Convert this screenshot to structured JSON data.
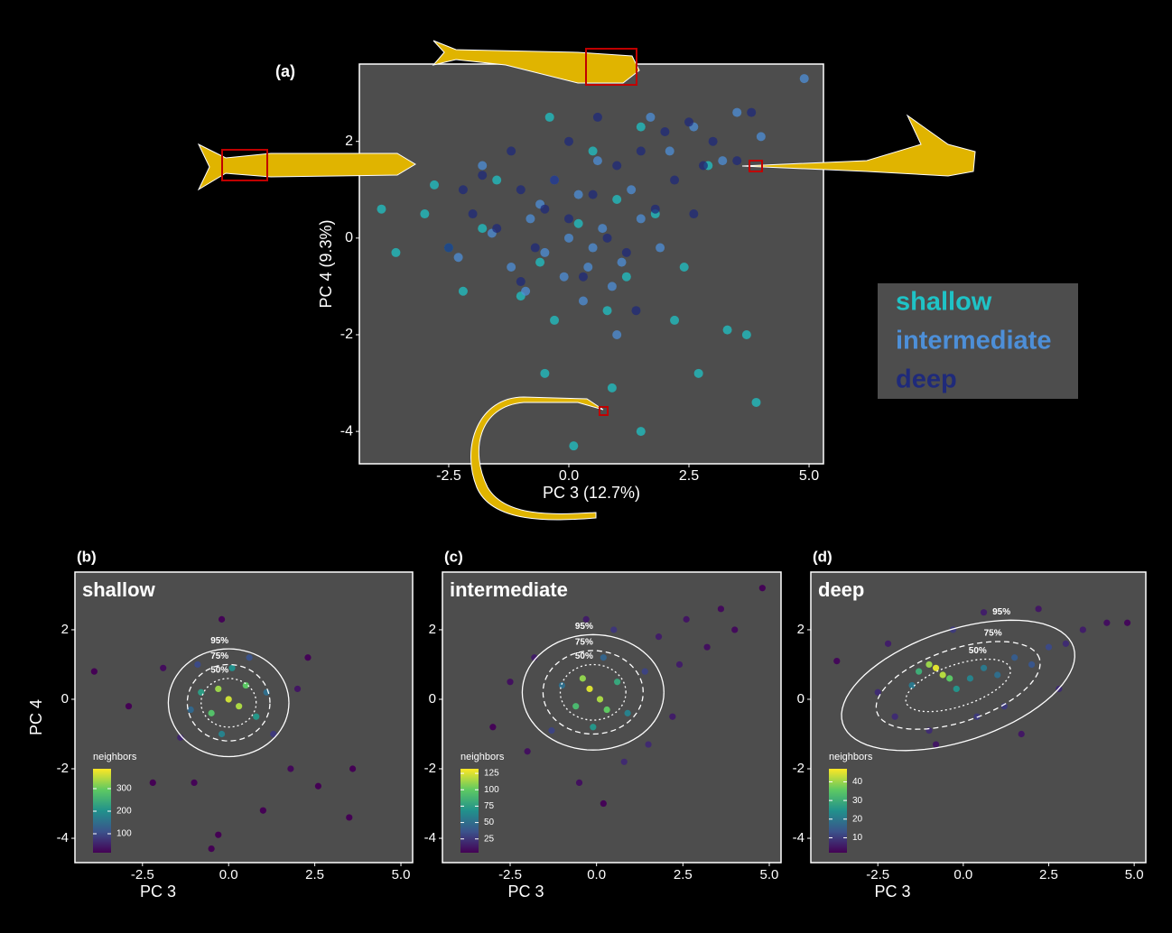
{
  "chart_data": [
    {
      "type": "scatter",
      "panel_label": "(a)",
      "xlabel": "PC 3 (12.7%)",
      "ylabel": "PC 4 (9.3%)",
      "xlim": [
        -4.36,
        5.3
      ],
      "ylim": [
        -4.67,
        3.6
      ],
      "xticks": [
        {
          "value": -2.5,
          "label": "-2.5"
        },
        {
          "value": 0,
          "label": "0.0"
        },
        {
          "value": 2.5,
          "label": "2.5"
        },
        {
          "value": 5,
          "label": "5.0"
        }
      ],
      "yticks": [
        -4,
        -2,
        0,
        2
      ],
      "series": [
        {
          "name": "shallow",
          "color": "#1fc3c6",
          "x": [
            -3.9,
            -3.6,
            3.7,
            3.9,
            0.1,
            1.5,
            2.7,
            -0.5,
            2.2,
            -2.5,
            -2.8,
            -1.8,
            1.2,
            0.5,
            -0.4,
            0.8,
            -1.0,
            1.8,
            2.9,
            -1.5,
            0.2,
            -0.6,
            1.0,
            0.9,
            3.3,
            -0.3,
            2.4,
            -2.2,
            1.5,
            -3.0
          ],
          "values": [
            0.6,
            -0.3,
            -2.0,
            -3.4,
            -4.3,
            -4.0,
            -2.8,
            -2.8,
            -1.7,
            -0.2,
            1.1,
            0.2,
            -0.8,
            1.8,
            2.5,
            -1.5,
            -1.2,
            0.5,
            1.5,
            1.2,
            0.3,
            -0.5,
            0.8,
            -3.1,
            -1.9,
            -1.7,
            -0.6,
            -1.1,
            2.3,
            0.5
          ]
        },
        {
          "name": "intermediate",
          "color": "#4d8fd8",
          "x": [
            0,
            -0.5,
            0.4,
            -0.8,
            0.7,
            1.1,
            -1.2,
            0.2,
            -0.3,
            0.9,
            -1.6,
            1.5,
            0.3,
            -0.9,
            1.3,
            -0.1,
            2.6,
            3.2,
            4.0,
            4.9,
            2.1,
            -1.8,
            0.6,
            1.9,
            -2.3,
            1.0,
            3.5,
            -0.6,
            0.5,
            1.7
          ],
          "values": [
            0,
            -0.3,
            -0.6,
            0.4,
            0.2,
            -0.5,
            -0.6,
            0.9,
            1.2,
            -1.0,
            0.1,
            0.4,
            -1.3,
            -1.1,
            1.0,
            -0.8,
            2.3,
            1.6,
            2.1,
            3.3,
            1.8,
            1.5,
            1.6,
            -0.2,
            -0.4,
            -2.0,
            2.6,
            0.7,
            -0.2,
            2.5
          ]
        },
        {
          "name": "deep",
          "color": "#1f2a7a",
          "x": [
            -1.0,
            -0.5,
            0.0,
            0.5,
            1.0,
            1.5,
            2.0,
            2.5,
            3.0,
            3.5,
            -1.5,
            -2.0,
            -2.5,
            -1.2,
            -0.3,
            0.8,
            1.2,
            0.3,
            -0.7,
            -1.8,
            2.2,
            2.8,
            0.0,
            0.6,
            1.8,
            -1.0,
            1.4,
            2.6,
            -2.2,
            3.8
          ],
          "values": [
            1.0,
            0.6,
            0.4,
            0.9,
            1.5,
            1.8,
            2.2,
            2.4,
            2.0,
            1.6,
            0.2,
            0.5,
            -0.2,
            1.8,
            1.2,
            0.0,
            -0.3,
            -0.8,
            -0.2,
            1.3,
            1.2,
            1.5,
            2.0,
            2.5,
            0.6,
            -0.9,
            -1.5,
            0.5,
            1.0,
            2.6
          ]
        }
      ]
    },
    {
      "type": "density-scatter",
      "panel_label": "(b)",
      "title": "shallow",
      "xlabel": "PC 3",
      "ylabel": "PC 4",
      "xlim": [
        -4.46,
        5.34
      ],
      "ylim": [
        -4.7,
        3.66
      ],
      "xticks": [
        {
          "value": -2.5,
          "label": "-2.5"
        },
        {
          "value": 0,
          "label": "0.0"
        },
        {
          "value": 2.5,
          "label": "2.5"
        },
        {
          "value": 5,
          "label": "5.0"
        }
      ],
      "yticks": [
        -4,
        -2,
        0,
        2
      ],
      "x": [
        0,
        -0.3,
        0.3,
        -0.5,
        0.5,
        -0.8,
        0.8,
        0.1,
        -0.2,
        1.1,
        -1.1,
        0.6,
        -0.9,
        1.3,
        -1.4,
        -0.2,
        -1.9,
        2.3,
        2.6,
        3.6,
        3.5,
        -0.3,
        -0.5,
        -2.9,
        -3.9,
        -2.2,
        1.8,
        1.0,
        -1.0,
        2.0
      ],
      "values": [
        0,
        0.3,
        -0.2,
        -0.4,
        0.4,
        0.2,
        -0.5,
        0.9,
        -1.0,
        0.2,
        -0.3,
        1.2,
        1.0,
        -1.0,
        -1.1,
        2.3,
        0.9,
        1.2,
        -2.5,
        -2.0,
        -3.4,
        -3.9,
        -4.3,
        -0.2,
        0.8,
        -2.4,
        -2.0,
        -3.2,
        -2.4,
        0.3
      ],
      "neighbors": [
        360,
        330,
        340,
        280,
        290,
        220,
        210,
        200,
        180,
        150,
        140,
        110,
        100,
        80,
        60,
        20,
        30,
        20,
        15,
        10,
        10,
        10,
        10,
        10,
        10,
        15,
        25,
        10,
        20,
        40
      ],
      "colorbar": {
        "title": "neighbors",
        "lim": [
          16,
          388
        ],
        "ticks": [
          100,
          200,
          300
        ]
      },
      "ellipses": [
        {
          "label": "95%",
          "cx": 0,
          "cy": -0.1,
          "rx": 1.75,
          "ry": 1.55,
          "angle": 0
        },
        {
          "label": "75%",
          "cx": 0,
          "cy": -0.1,
          "rx": 1.2,
          "ry": 1.1,
          "angle": 0
        },
        {
          "label": "50%",
          "cx": 0,
          "cy": -0.1,
          "rx": 0.8,
          "ry": 0.7,
          "angle": 0
        }
      ]
    },
    {
      "type": "density-scatter",
      "panel_label": "(c)",
      "title": "intermediate",
      "xlabel": "PC 3",
      "xlim": [
        -4.46,
        5.34
      ],
      "ylim": [
        -4.7,
        3.66
      ],
      "xticks": [
        {
          "value": -2.5,
          "label": "-2.5"
        },
        {
          "value": 0,
          "label": "0.0"
        },
        {
          "value": 2.5,
          "label": "2.5"
        },
        {
          "value": 5,
          "label": "5.0"
        }
      ],
      "yticks": [
        -4,
        -2,
        0,
        2
      ],
      "x": [
        -0.2,
        0.1,
        -0.4,
        0.3,
        -0.6,
        0.6,
        -0.1,
        0.9,
        -1.0,
        0.2,
        1.4,
        -1.3,
        1.8,
        2.6,
        3.2,
        4.0,
        4.8,
        3.6,
        2.4,
        -1.8,
        -2.5,
        -0.3,
        0.8,
        -0.5,
        0.2,
        1.5,
        -2.0,
        2.2,
        -3.0,
        0.5
      ],
      "values": [
        0.3,
        0,
        0.6,
        -0.3,
        -0.2,
        0.5,
        -0.8,
        -0.4,
        0.4,
        1.2,
        0.8,
        -0.9,
        1.8,
        2.3,
        1.5,
        2.0,
        3.2,
        2.6,
        1.0,
        1.2,
        0.5,
        2.3,
        -1.8,
        -2.4,
        -3.0,
        -1.3,
        -1.5,
        -0.5,
        -0.8,
        2.0
      ],
      "neighbors": [
        125,
        115,
        110,
        100,
        90,
        80,
        70,
        60,
        50,
        45,
        30,
        30,
        15,
        12,
        10,
        8,
        5,
        8,
        15,
        15,
        10,
        15,
        20,
        10,
        5,
        20,
        10,
        15,
        5,
        25
      ],
      "colorbar": {
        "title": "neighbors",
        "lim": [
          4,
          132
        ],
        "ticks": [
          25,
          50,
          75,
          100,
          125
        ]
      },
      "ellipses": [
        {
          "label": "95%",
          "cx": -0.1,
          "cy": 0.2,
          "rx": 2.05,
          "ry": 1.66,
          "angle": 0
        },
        {
          "label": "75%",
          "cx": -0.1,
          "cy": 0.2,
          "rx": 1.45,
          "ry": 1.2,
          "angle": 0
        },
        {
          "label": "50%",
          "cx": -0.1,
          "cy": 0.2,
          "rx": 0.95,
          "ry": 0.8,
          "angle": 0
        }
      ]
    },
    {
      "type": "density-scatter",
      "panel_label": "(d)",
      "title": "deep",
      "xlabel": "PC 3",
      "xlim": [
        -4.46,
        5.34
      ],
      "ylim": [
        -4.7,
        3.66
      ],
      "xticks": [
        {
          "value": -2.5,
          "label": "-2.5"
        },
        {
          "value": 0,
          "label": "0.0"
        },
        {
          "value": 2.5,
          "label": "2.5"
        },
        {
          "value": 5,
          "label": "5.0"
        }
      ],
      "yticks": [
        -4,
        -2,
        0,
        2
      ],
      "x": [
        -0.8,
        -0.6,
        -1.0,
        -0.4,
        -1.3,
        -0.2,
        0.2,
        -1.5,
        0.6,
        1.0,
        1.5,
        2.0,
        2.5,
        3.0,
        3.5,
        4.2,
        4.8,
        -2.5,
        -3.7,
        -2.0,
        -1.0,
        0.4,
        1.2,
        2.2,
        0.6,
        -0.3,
        -2.2,
        1.7,
        -0.8,
        2.8
      ],
      "values": [
        0.9,
        0.7,
        1.0,
        0.6,
        0.8,
        0.3,
        0.6,
        0.4,
        0.9,
        0.7,
        1.2,
        1.0,
        1.5,
        1.6,
        2.0,
        2.2,
        2.2,
        0.2,
        1.1,
        -0.5,
        -0.9,
        -0.5,
        -0.2,
        2.6,
        2.5,
        2.0,
        1.6,
        -1.0,
        -1.3,
        0.3
      ],
      "neighbors": [
        45,
        42,
        40,
        35,
        30,
        25,
        22,
        20,
        20,
        18,
        15,
        14,
        12,
        8,
        6,
        4,
        3,
        8,
        3,
        8,
        8,
        10,
        10,
        5,
        6,
        10,
        6,
        5,
        5,
        8
      ],
      "colorbar": {
        "title": "neighbors",
        "lim": [
          2,
          47
        ],
        "ticks": [
          10,
          20,
          30,
          40
        ]
      },
      "ellipses": [
        {
          "label": "95%",
          "cx": -0.15,
          "cy": 0.4,
          "rx": 3.55,
          "ry": 1.6,
          "angle": 18
        },
        {
          "label": "75%",
          "cx": -0.15,
          "cy": 0.4,
          "rx": 2.5,
          "ry": 1.05,
          "angle": 18
        },
        {
          "label": "50%",
          "cx": -0.15,
          "cy": 0.4,
          "rx": 1.6,
          "ry": 0.6,
          "angle": 18
        }
      ]
    }
  ]
}
